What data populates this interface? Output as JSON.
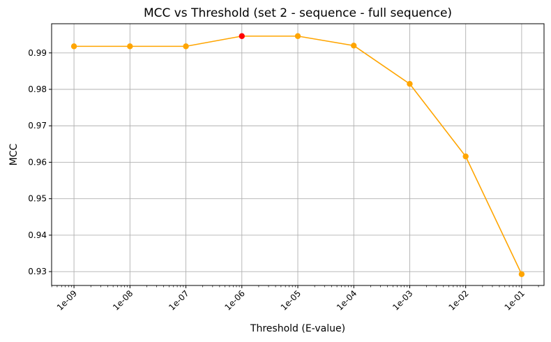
{
  "chart_data": {
    "type": "line",
    "title": "MCC vs Threshold (set 2 - sequence - full sequence)",
    "xlabel": "Threshold (E-value)",
    "ylabel": "MCC",
    "x_scale": "log",
    "x_ticks": [
      "1e-09",
      "1e-08",
      "1e-07",
      "1e-06",
      "1e-05",
      "1e-04",
      "1e-03",
      "1e-02",
      "1e-01"
    ],
    "x_tick_exponents": [
      -9,
      -8,
      -7,
      -6,
      -5,
      -4,
      -3,
      -2,
      -1
    ],
    "xlim_exponent": [
      -9.4,
      -0.6
    ],
    "y_ticks": [
      "0.93",
      "0.94",
      "0.95",
      "0.96",
      "0.97",
      "0.98",
      "0.99"
    ],
    "y_tick_values": [
      0.93,
      0.94,
      0.95,
      0.96,
      0.97,
      0.98,
      0.99
    ],
    "ylim": [
      0.9262,
      0.998
    ],
    "grid": true,
    "series": [
      {
        "x": [
          "1e-09",
          "1e-08",
          "1e-07",
          "1e-06",
          "1e-05",
          "1e-04",
          "1e-03",
          "1e-02",
          "1e-01"
        ],
        "x_exponents": [
          -9,
          -8,
          -7,
          -6,
          -5,
          -4,
          -3,
          -2,
          -1
        ],
        "values": [
          0.9918,
          0.9918,
          0.9918,
          0.9946,
          0.9946,
          0.992,
          0.9815,
          0.9616,
          0.9293
        ],
        "color": "#ffa500",
        "marker": "circle"
      }
    ],
    "highlight": {
      "x": "1e-06",
      "value": 0.9946,
      "color": "#ff0000"
    }
  }
}
